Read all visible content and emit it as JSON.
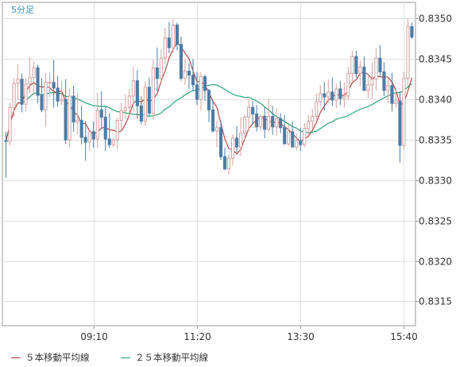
{
  "chart_data": {
    "type": "candlestick",
    "timeframe_label": "5分足",
    "ylim": [
      0.8312,
      0.8352
    ],
    "y_ticks": [
      "0.8350",
      "0.8345",
      "0.8340",
      "0.8335",
      "0.8330",
      "0.8325",
      "0.8320",
      "0.8315"
    ],
    "x_ticks": [
      {
        "label": "09:10",
        "index": 22
      },
      {
        "label": "11:20",
        "index": 48
      },
      {
        "label": "13:30",
        "index": 74
      },
      {
        "label": "15:40",
        "index": 100
      }
    ],
    "colors": {
      "up": "#d5a2a0",
      "down": "#4c7ca6",
      "ma5": "#b53a3a",
      "ma25": "#1f9e6a",
      "grid": "#e0e0e0",
      "axis": "#9a9a9a"
    },
    "candles": [
      [
        0.83349,
        0.8336,
        0.83303,
        0.83348
      ],
      [
        0.83348,
        0.83396,
        0.83343,
        0.8339
      ],
      [
        0.8339,
        0.83426,
        0.83378,
        0.8342
      ],
      [
        0.8342,
        0.83443,
        0.834,
        0.83425
      ],
      [
        0.83425,
        0.83432,
        0.83384,
        0.83394
      ],
      [
        0.83394,
        0.83427,
        0.83385,
        0.83419
      ],
      [
        0.83419,
        0.83452,
        0.83408,
        0.83427
      ],
      [
        0.83427,
        0.83447,
        0.83405,
        0.83439
      ],
      [
        0.83439,
        0.83443,
        0.83395,
        0.83405
      ],
      [
        0.83405,
        0.83426,
        0.83384,
        0.83387
      ],
      [
        0.83387,
        0.83433,
        0.83366,
        0.83421
      ],
      [
        0.83421,
        0.83433,
        0.83403,
        0.83421
      ],
      [
        0.83421,
        0.83449,
        0.8339,
        0.83414
      ],
      [
        0.83414,
        0.83429,
        0.83391,
        0.83398
      ],
      [
        0.83398,
        0.83423,
        0.83393,
        0.834
      ],
      [
        0.834,
        0.83425,
        0.83345,
        0.8335
      ],
      [
        0.8335,
        0.83414,
        0.83341,
        0.83404
      ],
      [
        0.83404,
        0.83417,
        0.8336,
        0.83372
      ],
      [
        0.83372,
        0.83408,
        0.83357,
        0.83374
      ],
      [
        0.83374,
        0.83392,
        0.83344,
        0.83353
      ],
      [
        0.83353,
        0.83373,
        0.83324,
        0.83347
      ],
      [
        0.83347,
        0.83363,
        0.83336,
        0.8336
      ],
      [
        0.8336,
        0.83373,
        0.8334,
        0.83351
      ],
      [
        0.83351,
        0.83408,
        0.8334,
        0.83387
      ],
      [
        0.83387,
        0.8341,
        0.83363,
        0.83378
      ],
      [
        0.83378,
        0.83391,
        0.83336,
        0.83351
      ],
      [
        0.83351,
        0.83383,
        0.8334,
        0.83344
      ],
      [
        0.83344,
        0.83353,
        0.83341,
        0.8335
      ],
      [
        0.8335,
        0.83377,
        0.83339,
        0.83374
      ],
      [
        0.83374,
        0.83396,
        0.83362,
        0.83386
      ],
      [
        0.83386,
        0.83406,
        0.83376,
        0.8339
      ],
      [
        0.8339,
        0.83413,
        0.83378,
        0.83404
      ],
      [
        0.83404,
        0.8344,
        0.83385,
        0.83423
      ],
      [
        0.83423,
        0.83436,
        0.83376,
        0.83392
      ],
      [
        0.83392,
        0.83404,
        0.83369,
        0.83373
      ],
      [
        0.83373,
        0.83423,
        0.83367,
        0.83415
      ],
      [
        0.83415,
        0.83427,
        0.83379,
        0.83383
      ],
      [
        0.83383,
        0.83449,
        0.83375,
        0.83439
      ],
      [
        0.83439,
        0.83464,
        0.8341,
        0.83426
      ],
      [
        0.83426,
        0.83462,
        0.8342,
        0.83451
      ],
      [
        0.83451,
        0.83488,
        0.83444,
        0.83476
      ],
      [
        0.83476,
        0.83496,
        0.83457,
        0.83464
      ],
      [
        0.83464,
        0.83499,
        0.83457,
        0.83492
      ],
      [
        0.83492,
        0.83495,
        0.83461,
        0.83468
      ],
      [
        0.83468,
        0.83478,
        0.83423,
        0.83426
      ],
      [
        0.83426,
        0.8345,
        0.83418,
        0.83435
      ],
      [
        0.83435,
        0.83445,
        0.83413,
        0.8343
      ],
      [
        0.8343,
        0.8345,
        0.8341,
        0.83418
      ],
      [
        0.83418,
        0.83434,
        0.83393,
        0.834
      ],
      [
        0.834,
        0.83434,
        0.83386,
        0.83428
      ],
      [
        0.83428,
        0.83431,
        0.83398,
        0.83411
      ],
      [
        0.83411,
        0.83413,
        0.83372,
        0.83387
      ],
      [
        0.83387,
        0.834,
        0.83359,
        0.83361
      ],
      [
        0.83361,
        0.83373,
        0.83341,
        0.83365
      ],
      [
        0.83365,
        0.83374,
        0.83325,
        0.83329
      ],
      [
        0.83329,
        0.8334,
        0.83312,
        0.83314
      ],
      [
        0.83314,
        0.83332,
        0.83307,
        0.83327
      ],
      [
        0.83327,
        0.83357,
        0.83318,
        0.83352
      ],
      [
        0.83352,
        0.83367,
        0.83334,
        0.83341
      ],
      [
        0.83341,
        0.83378,
        0.8333,
        0.83358
      ],
      [
        0.83358,
        0.83381,
        0.83348,
        0.83378
      ],
      [
        0.83378,
        0.834,
        0.83362,
        0.8339
      ],
      [
        0.8339,
        0.83398,
        0.83369,
        0.83382
      ],
      [
        0.83382,
        0.83393,
        0.8336,
        0.83366
      ],
      [
        0.83366,
        0.83381,
        0.83361,
        0.83379
      ],
      [
        0.83379,
        0.83391,
        0.83352,
        0.83363
      ],
      [
        0.83363,
        0.83401,
        0.8336,
        0.83379
      ],
      [
        0.83379,
        0.83392,
        0.83356,
        0.83366
      ],
      [
        0.83366,
        0.83389,
        0.83355,
        0.83376
      ],
      [
        0.83376,
        0.83383,
        0.83358,
        0.83365
      ],
      [
        0.83365,
        0.83381,
        0.83344,
        0.83345
      ],
      [
        0.83345,
        0.83369,
        0.83342,
        0.8336
      ],
      [
        0.8336,
        0.83373,
        0.83341,
        0.83341
      ],
      [
        0.83341,
        0.83358,
        0.83337,
        0.83349
      ],
      [
        0.83349,
        0.83365,
        0.83336,
        0.83344
      ],
      [
        0.83344,
        0.83371,
        0.83341,
        0.83364
      ],
      [
        0.83364,
        0.83381,
        0.83355,
        0.83373
      ],
      [
        0.83373,
        0.83388,
        0.83363,
        0.83379
      ],
      [
        0.83379,
        0.83407,
        0.83374,
        0.83397
      ],
      [
        0.83397,
        0.83418,
        0.83391,
        0.83407
      ],
      [
        0.83407,
        0.83422,
        0.83386,
        0.83403
      ],
      [
        0.83403,
        0.83425,
        0.83395,
        0.83409
      ],
      [
        0.83409,
        0.83427,
        0.83392,
        0.83399
      ],
      [
        0.83399,
        0.83419,
        0.83389,
        0.83413
      ],
      [
        0.83413,
        0.83423,
        0.83393,
        0.83401
      ],
      [
        0.83401,
        0.83421,
        0.8339,
        0.83404
      ],
      [
        0.83404,
        0.8344,
        0.83399,
        0.83432
      ],
      [
        0.83432,
        0.8346,
        0.83421,
        0.83453
      ],
      [
        0.83453,
        0.8346,
        0.83427,
        0.83432
      ],
      [
        0.83432,
        0.83448,
        0.83416,
        0.8344
      ],
      [
        0.8344,
        0.83453,
        0.83411,
        0.83411
      ],
      [
        0.83411,
        0.83429,
        0.83401,
        0.83418
      ],
      [
        0.83418,
        0.83445,
        0.834,
        0.83425
      ],
      [
        0.83425,
        0.83463,
        0.83411,
        0.83451
      ],
      [
        0.83451,
        0.83467,
        0.83427,
        0.83434
      ],
      [
        0.83434,
        0.83446,
        0.83404,
        0.83411
      ],
      [
        0.83411,
        0.83428,
        0.83395,
        0.83417
      ],
      [
        0.83417,
        0.83433,
        0.83385,
        0.83395
      ],
      [
        0.83395,
        0.83414,
        0.8339,
        0.83398
      ],
      [
        0.83398,
        0.8341,
        0.83322,
        0.83343
      ],
      [
        0.83343,
        0.83434,
        0.83338,
        0.83426
      ],
      [
        0.83426,
        0.835,
        0.83417,
        0.8349
      ],
      [
        0.8349,
        0.83495,
        0.83475,
        0.83477
      ]
    ],
    "indicators": [
      {
        "name": "５本移動平均線",
        "period": 5,
        "color": "#b53a3a"
      },
      {
        "name": "２５本移動平均線",
        "period": 25,
        "color": "#1f9e6a"
      }
    ]
  }
}
